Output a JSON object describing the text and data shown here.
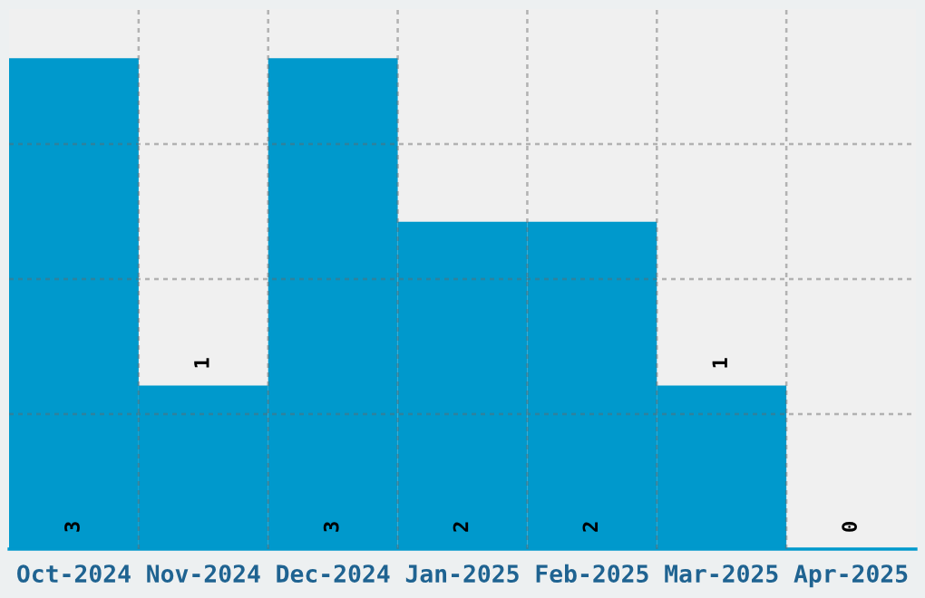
{
  "chart_data": {
    "type": "bar",
    "categories": [
      "Oct-2024",
      "Nov-2024",
      "Dec-2024",
      "Jan-2025",
      "Feb-2025",
      "Mar-2025",
      "Apr-2025"
    ],
    "values": [
      3,
      1,
      3,
      2,
      2,
      1,
      0
    ],
    "color": "#0099cc",
    "ylim": [
      0,
      3.3
    ],
    "yticks": [
      {
        "value": 0.825,
        "label": null
      },
      {
        "value": 1.65,
        "label": null
      },
      {
        "value": 2.475,
        "label": null
      }
    ],
    "tick_labels": "x",
    "grid": true,
    "data_labels": true
  }
}
